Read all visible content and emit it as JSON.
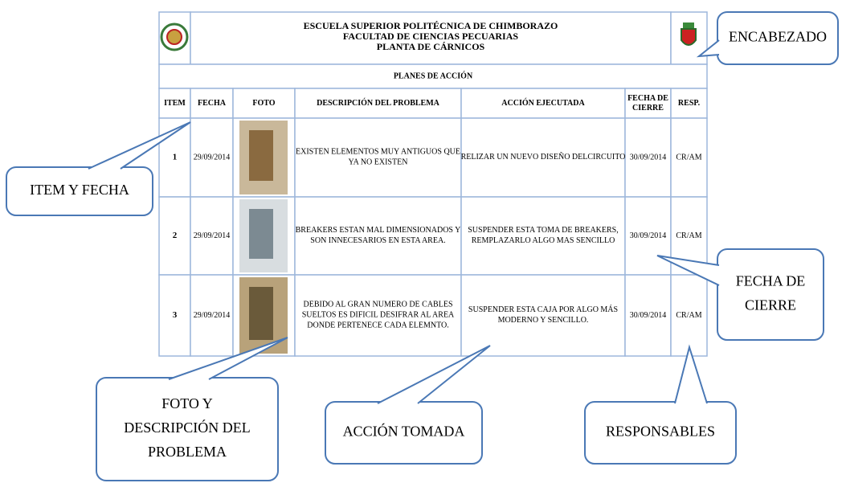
{
  "header": {
    "lines": [
      "ESCUELA SUPERIOR POLITÉCNICA DE CHIMBORAZO",
      "FACULTAD DE CIENCIAS PECUARIAS",
      "PLANTA DE CÁRNICOS"
    ]
  },
  "section_title": "PLANES DE ACCIÓN",
  "columns": [
    [
      "ITEM"
    ],
    [
      "FECHA"
    ],
    [
      "FOTO"
    ],
    [
      "DESCRIPCIÓN DEL PROBLEMA"
    ],
    [
      "ACCIÓN EJECUTADA"
    ],
    [
      "FECHA DE",
      "CIERRE"
    ],
    [
      "RESP."
    ]
  ],
  "rows": [
    {
      "item": "1",
      "fecha": "29/09/2014",
      "descripcion": [
        "EXISTEN ELEMENTOS MUY ANTIGUOS QUE",
        "YA NO EXISTEN"
      ],
      "accion": [
        "RELIZAR UN NUEVO DISEÑO DELCIRCUITO"
      ],
      "fecha_cierre": "30/09/2014",
      "resp": "CR/AM"
    },
    {
      "item": "2",
      "fecha": "29/09/2014",
      "descripcion": [
        "BREAKERS ESTAN MAL DIMENSIONADOS Y",
        "SON INNECESARIOS EN ESTA AREA."
      ],
      "accion": [
        "SUSPENDER ESTA TOMA DE BREAKERS,",
        "REMPLAZARLO ALGO MAS SENCILLO"
      ],
      "fecha_cierre": "30/09/2014",
      "resp": "CR/AM"
    },
    {
      "item": "3",
      "fecha": "29/09/2014",
      "descripcion": [
        "DEBIDO AL GRAN NUMERO DE CABLES",
        "SUELTOS ES DIFICIL DESIFRAR AL AREA",
        "DONDE PERTENECE CADA ELEMNTO."
      ],
      "accion": [
        "SUSPENDER ESTA CAJA POR ALGO MÁS",
        "MODERNO Y SENCILLO."
      ],
      "fecha_cierre": "30/09/2014",
      "resp": "CR/AM"
    }
  ],
  "callouts": [
    {
      "lines": [
        "ENCABEZADO"
      ]
    },
    {
      "lines": [
        "ITEM Y FECHA"
      ]
    },
    {
      "lines": [
        "FECHA DE",
        "CIERRE"
      ]
    },
    {
      "lines": [
        "FOTO Y",
        "DESCRIPCIÓN DEL",
        "PROBLEMA"
      ]
    },
    {
      "lines": [
        "ACCIÓN TOMADA"
      ]
    },
    {
      "lines": [
        "RESPONSABLES"
      ]
    }
  ]
}
